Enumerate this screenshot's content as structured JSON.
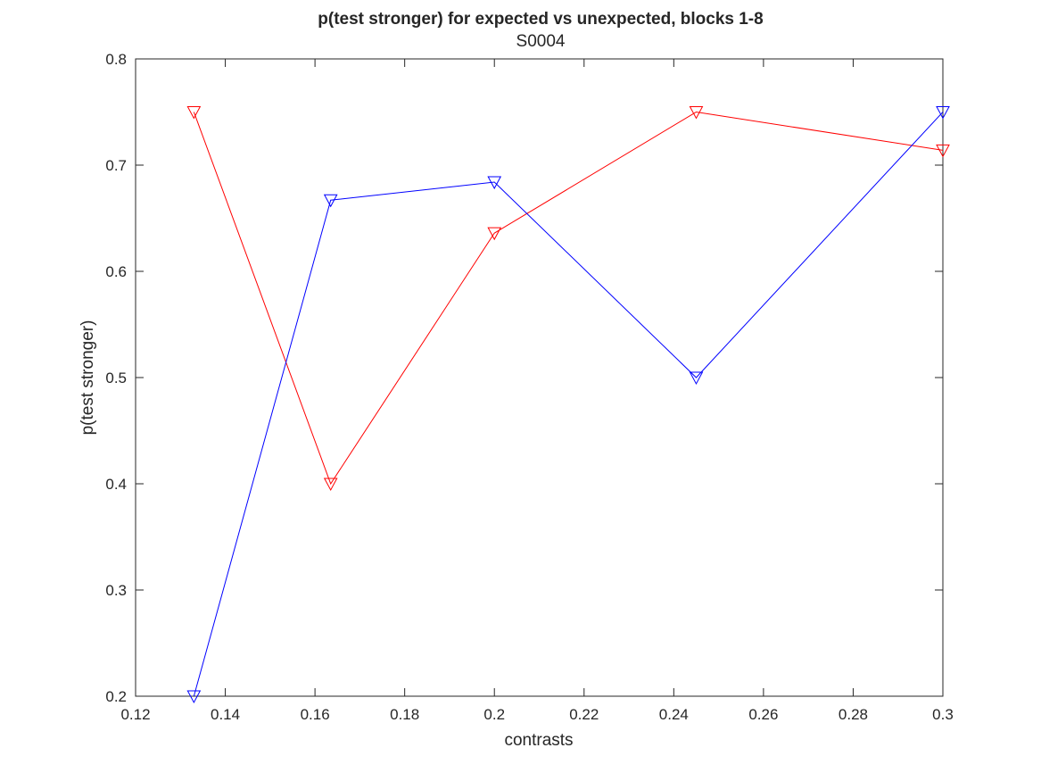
{
  "chart_data": {
    "type": "line",
    "title": "p(test stronger) for expected vs unexpected, blocks 1-8",
    "subtitle": "S0004",
    "xlabel": "contrasts",
    "ylabel": "p(test stronger)",
    "xlim": [
      0.12,
      0.3
    ],
    "ylim": [
      0.2,
      0.8
    ],
    "xticks": [
      0.12,
      0.14,
      0.16,
      0.18,
      0.2,
      0.22,
      0.24,
      0.26,
      0.28,
      0.3
    ],
    "xtick_labels": [
      "0.12",
      "0.14",
      "0.16",
      "0.18",
      "0.2",
      "0.22",
      "0.24",
      "0.26",
      "0.28",
      "0.3"
    ],
    "yticks": [
      0.2,
      0.3,
      0.4,
      0.5,
      0.6,
      0.7,
      0.8
    ],
    "ytick_labels": [
      "0.2",
      "0.3",
      "0.4",
      "0.5",
      "0.6",
      "0.7",
      "0.8"
    ],
    "grid": false,
    "marker": "triangle-down",
    "series": [
      {
        "color": "#ff0000",
        "x": [
          0.133,
          0.1635,
          0.2,
          0.245,
          0.3
        ],
        "y": [
          0.75,
          0.4,
          0.636,
          0.75,
          0.714
        ]
      },
      {
        "color": "#0000ff",
        "x": [
          0.133,
          0.1635,
          0.2,
          0.245,
          0.3
        ],
        "y": [
          0.2,
          0.667,
          0.684,
          0.5,
          0.75
        ]
      }
    ]
  }
}
